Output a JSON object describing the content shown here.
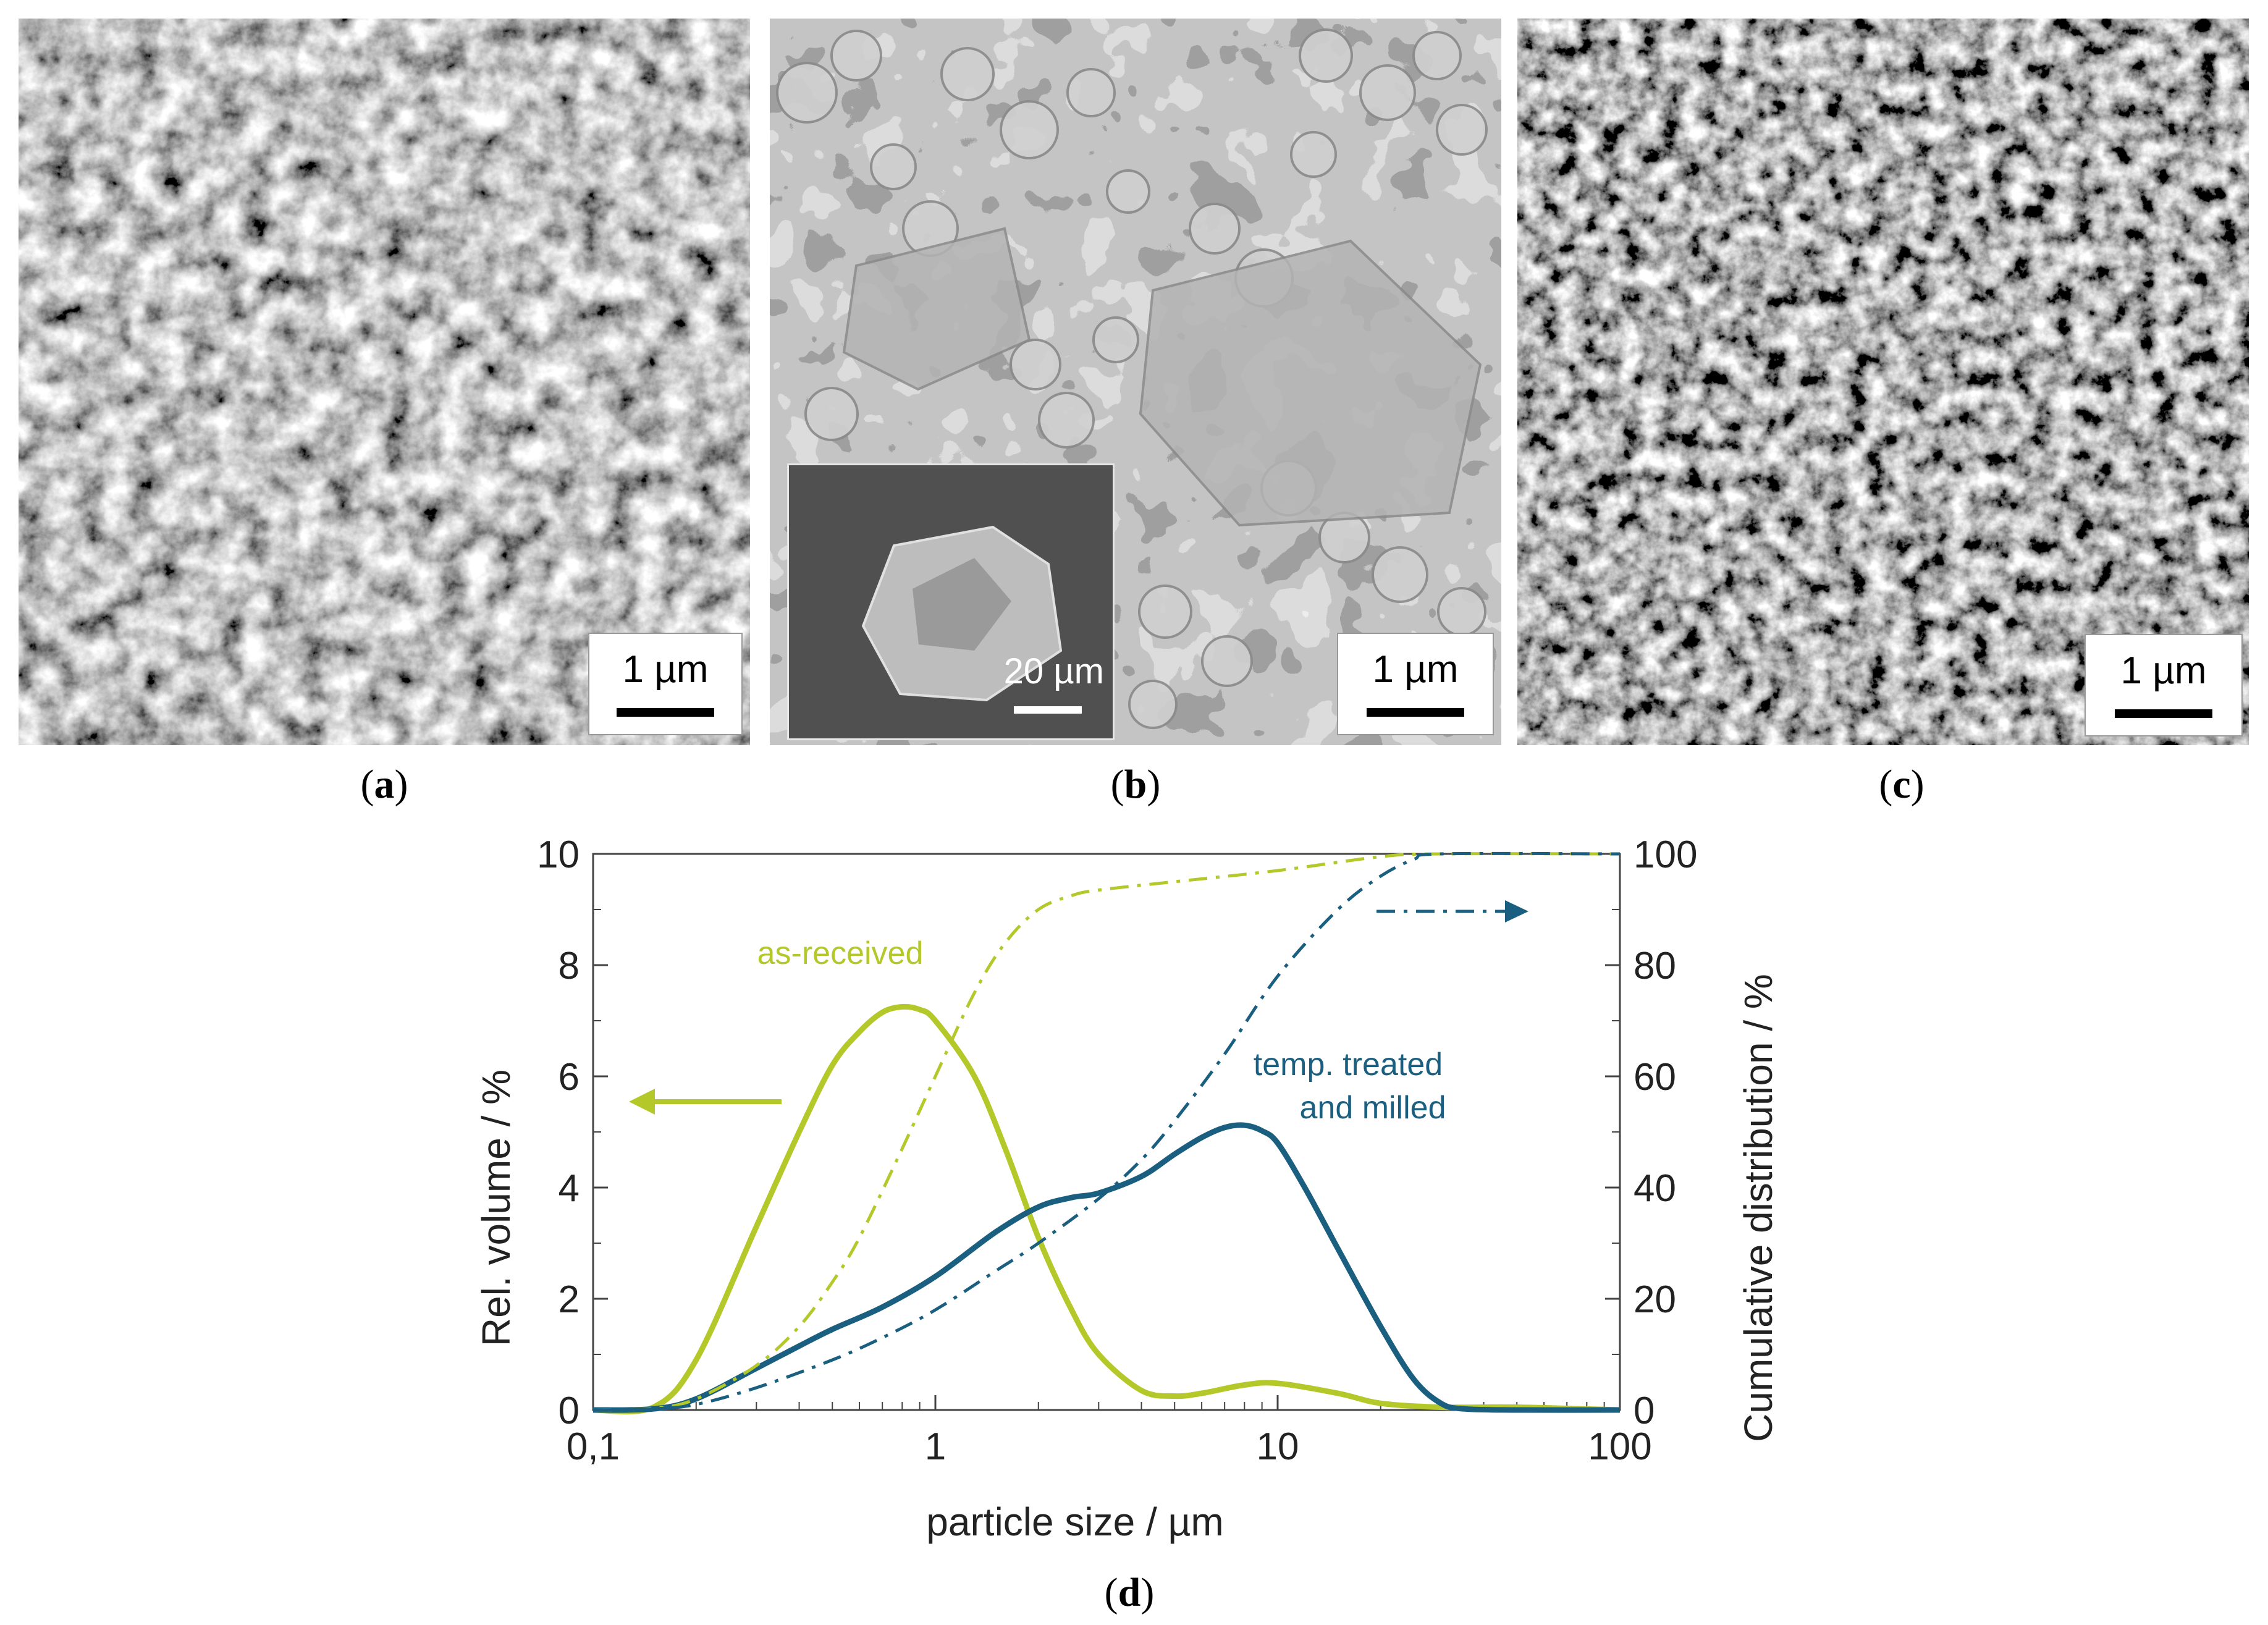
{
  "panels": {
    "a": {
      "caption": "a",
      "scale_label": "1 µm"
    },
    "b": {
      "caption": "b",
      "scale_label": "1 µm",
      "inset_scale_label": "20 µm"
    },
    "c": {
      "caption": "c",
      "scale_label": "1 µm"
    },
    "d": {
      "caption": "d"
    }
  },
  "colors": {
    "as_received": "#b5c82a",
    "treated": "#1a5f80",
    "sem_bg": "#5a5a5a"
  },
  "chart_data": {
    "type": "line",
    "xscale": "log",
    "xlim": [
      0.1,
      100
    ],
    "x_ticks": [
      0.1,
      1,
      10,
      100
    ],
    "x_tick_labels": [
      "0,1",
      "1",
      "10",
      "100"
    ],
    "xlabel": "particle size / µm",
    "ylabel_left": "Rel. volume / %",
    "ylim_left": [
      0,
      10
    ],
    "y_ticks_left": [
      0,
      2,
      4,
      6,
      8,
      10
    ],
    "ylabel_right": "Cumulative distribution / %",
    "ylim_right": [
      0,
      100
    ],
    "y_ticks_right": [
      0,
      20,
      40,
      60,
      80,
      100
    ],
    "annotations": {
      "as_received": "as-received",
      "treated_line1": "temp.  treated",
      "treated_line2": "and milled"
    },
    "series": [
      {
        "name": "as-received rel. volume",
        "axis": "left",
        "style": "solid",
        "color_key": "as_received",
        "x": [
          0.1,
          0.15,
          0.2,
          0.3,
          0.4,
          0.5,
          0.6,
          0.7,
          0.8,
          0.9,
          1,
          1.3,
          1.6,
          2,
          2.5,
          3,
          4,
          5,
          6,
          8,
          10,
          15,
          20,
          30,
          50,
          100
        ],
        "y": [
          0,
          0.05,
          0.9,
          3.3,
          5.0,
          6.2,
          6.8,
          7.15,
          7.25,
          7.2,
          7.0,
          6.0,
          4.7,
          3.1,
          1.8,
          1.0,
          0.35,
          0.25,
          0.3,
          0.45,
          0.48,
          0.3,
          0.12,
          0.05,
          0.05,
          0
        ]
      },
      {
        "name": "temp. treated and milled rel. volume",
        "axis": "left",
        "style": "solid",
        "color_key": "treated",
        "x": [
          0.1,
          0.15,
          0.2,
          0.3,
          0.4,
          0.5,
          0.7,
          1,
          1.5,
          2,
          2.5,
          3,
          4,
          5,
          6,
          7,
          8,
          9,
          10,
          12,
          15,
          20,
          25,
          30,
          35,
          50,
          100
        ],
        "y": [
          0,
          0.02,
          0.2,
          0.75,
          1.15,
          1.45,
          1.85,
          2.4,
          3.2,
          3.65,
          3.82,
          3.9,
          4.2,
          4.6,
          4.9,
          5.08,
          5.12,
          5.02,
          4.8,
          4.0,
          2.9,
          1.5,
          0.55,
          0.12,
          0.02,
          0,
          0
        ]
      },
      {
        "name": "as-received cumulative",
        "axis": "right",
        "style": "dashdot",
        "color_key": "as_received",
        "x": [
          0.1,
          0.15,
          0.2,
          0.3,
          0.4,
          0.5,
          0.6,
          0.8,
          1,
          1.3,
          1.6,
          2,
          2.5,
          3,
          5,
          10,
          20,
          30,
          100
        ],
        "y": [
          0,
          0.3,
          2,
          8,
          15,
          23,
          31,
          47,
          60,
          75,
          84,
          90,
          92.5,
          93.5,
          95,
          97,
          99.5,
          100,
          100
        ]
      },
      {
        "name": "temp. treated and milled cumulative",
        "axis": "right",
        "style": "dashdot",
        "color_key": "treated",
        "x": [
          0.1,
          0.15,
          0.2,
          0.3,
          0.5,
          0.7,
          1,
          1.5,
          2,
          3,
          4,
          5,
          7,
          10,
          15,
          20,
          25,
          30,
          100
        ],
        "y": [
          0,
          0.2,
          1,
          4,
          9,
          13,
          18,
          25,
          30,
          38,
          45,
          52,
          64,
          78,
          90,
          96,
          99,
          100,
          100
        ]
      }
    ]
  }
}
